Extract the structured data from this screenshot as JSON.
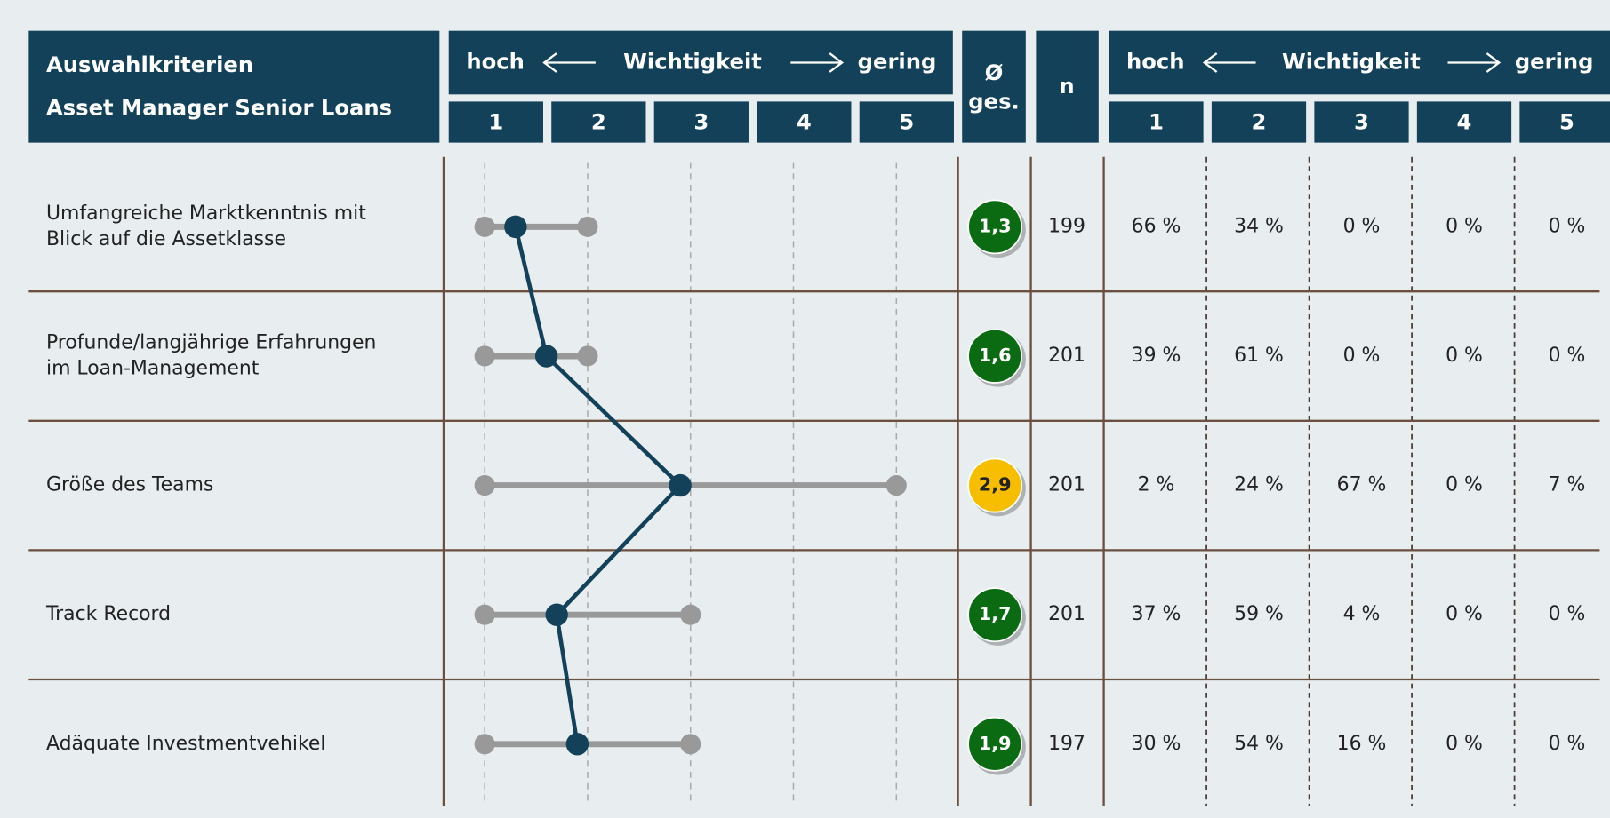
{
  "chart_data": {
    "type": "range-dot",
    "title_lines": [
      "Auswahlkriterien",
      "Asset Manager Senior Loans"
    ],
    "scale_left": "hoch",
    "scale_center": "Wichtigkeit",
    "scale_right": "gering",
    "mean_header": [
      "Ø",
      "ges."
    ],
    "n_header": "n",
    "xlim": [
      1,
      5
    ],
    "xticks": [
      1,
      2,
      3,
      4,
      5
    ],
    "categories": [
      [
        "Umfangreiche Marktkenntnis mit",
        "Blick auf die Assetklasse"
      ],
      [
        "Profunde/langjährige Erfahrungen",
        "im Loan-Management"
      ],
      [
        "Größe des Teams"
      ],
      [
        "Track Record"
      ],
      [
        "Adäquate Investmentvehikel"
      ]
    ],
    "values": [
      1.3,
      1.6,
      2.9,
      1.7,
      1.9
    ],
    "value_labels": [
      "1,3",
      "1,6",
      "2,9",
      "1,7",
      "1,9"
    ],
    "colors": [
      "#0b6b12",
      "#0b6b12",
      "#f7be00",
      "#0b6b12",
      "#0b6b12"
    ],
    "min": [
      1,
      1,
      1,
      1,
      1
    ],
    "max": [
      2,
      2,
      5,
      3,
      3
    ],
    "n": [
      199,
      201,
      201,
      201,
      197
    ],
    "distribution": [
      [
        "66 %",
        "34 %",
        "0 %",
        "0 %",
        "0 %"
      ],
      [
        "39 %",
        "61 %",
        "0 %",
        "0 %",
        "0 %"
      ],
      [
        "2 %",
        "24 %",
        "67 %",
        "0 %",
        "7 %"
      ],
      [
        "37 %",
        "59 %",
        "4 %",
        "0 %",
        "0 %"
      ],
      [
        "30 %",
        "54 %",
        "16 %",
        "0 %",
        "0 %"
      ]
    ]
  }
}
